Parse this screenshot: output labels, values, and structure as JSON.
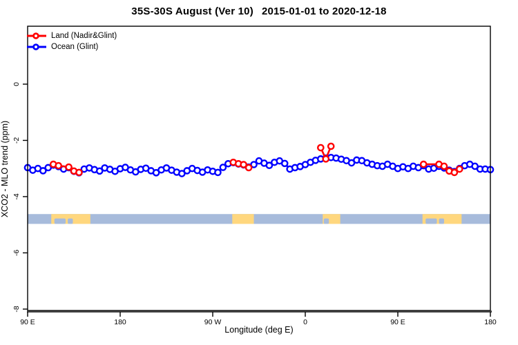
{
  "title": "35S-30S August (Ver 10)  2015-01-01 to 2020-12-18",
  "chart_data": {
    "type": "line",
    "title": "35S-30S August (Ver 10)  2015-01-01 to 2020-12-18",
    "xlabel": "Longitude (deg E)",
    "ylabel": "XCO2 - MLO trend (ppm)",
    "x_range": [
      90,
      540
    ],
    "y_range": [
      -8.05,
      2.06
    ],
    "x_ticks": [
      {
        "pos": 90,
        "label": "90 E"
      },
      {
        "pos": 180,
        "label": "180"
      },
      {
        "pos": 270,
        "label": "90 W"
      },
      {
        "pos": 360,
        "label": "0"
      },
      {
        "pos": 450,
        "label": "90 E"
      },
      {
        "pos": 540,
        "label": "180"
      }
    ],
    "y_ticks": [
      {
        "pos": 0,
        "label": "0"
      },
      {
        "pos": -2,
        "label": "-2"
      },
      {
        "pos": -4,
        "label": "-4"
      },
      {
        "pos": -6,
        "label": "-6"
      },
      {
        "pos": -8,
        "label": "-8"
      }
    ],
    "grid": false,
    "legend_position": "top-left",
    "legend": [
      {
        "label": "Land (Nadir&Glint)",
        "color": "#ff0000"
      },
      {
        "label": "Ocean (Glint)",
        "color": "#0000ff"
      }
    ],
    "series": [
      {
        "name": "Ocean (Glint)",
        "color": "#0000ff",
        "marker": "open-circle",
        "x0": 90,
        "dx": 5,
        "values": [
          -2.97,
          -3.06,
          -3.0,
          -3.08,
          -2.97,
          -2.88,
          -2.93,
          -3.02,
          -2.97,
          -3.1,
          -3.15,
          -3.02,
          -2.98,
          -3.04,
          -3.09,
          -2.98,
          -3.03,
          -3.1,
          -3.01,
          -2.96,
          -3.05,
          -3.12,
          -3.03,
          -2.99,
          -3.08,
          -3.15,
          -3.05,
          -2.98,
          -3.06,
          -3.13,
          -3.18,
          -3.08,
          -3.0,
          -3.07,
          -3.13,
          -3.05,
          -3.1,
          -3.14,
          -2.96,
          -2.83,
          -2.79,
          -2.84,
          -2.87,
          -2.95,
          -2.86,
          -2.73,
          -2.81,
          -2.89,
          -2.78,
          -2.73,
          -2.82,
          -3.02,
          -2.97,
          -2.93,
          -2.86,
          -2.78,
          -2.71,
          -2.66,
          -2.63,
          -2.61,
          -2.63,
          -2.67,
          -2.72,
          -2.8,
          -2.7,
          -2.72,
          -2.8,
          -2.85,
          -2.9,
          -2.92,
          -2.85,
          -2.92,
          -3.0,
          -2.94,
          -3.0,
          -2.92,
          -2.97,
          -2.9,
          -3.02,
          -2.99,
          -2.92,
          -2.98,
          -3.06,
          -3.11,
          -3.0,
          -2.9,
          -2.85,
          -2.92,
          -3.02,
          -3.02,
          -3.04
        ]
      },
      {
        "name": "Land (Nadir&Glint)",
        "color": "#ff0000",
        "marker": "open-circle",
        "segments": [
          [
            [
              115,
              -2.85
            ],
            [
              120,
              -2.9
            ],
            [
              130,
              -2.95
            ],
            [
              135,
              -3.09
            ],
            [
              140,
              -3.14
            ]
          ],
          [
            [
              290,
              -2.78
            ],
            [
              295,
              -2.83
            ],
            [
              300,
              -2.86
            ],
            [
              305,
              -2.97
            ]
          ],
          [
            [
              375,
              -2.26
            ],
            [
              380,
              -2.66
            ],
            [
              385,
              -2.21
            ]
          ],
          [
            [
              475,
              -2.85
            ],
            [
              490,
              -2.85
            ],
            [
              495,
              -2.92
            ],
            [
              500,
              -3.09
            ],
            [
              505,
              -3.14
            ],
            [
              510,
              -3.02
            ]
          ]
        ]
      }
    ],
    "land_ocean_strip": {
      "comment": "world map band at 35S-30S drawn across plot",
      "y_top": -4.62,
      "y_bottom": -4.97,
      "ocean_color": "#a7bbdb",
      "land_color": "#ffd77e",
      "land_patches": [
        [
          113,
          151
        ],
        [
          289,
          310
        ],
        [
          377,
          394
        ],
        [
          474,
          512
        ]
      ],
      "water_notches": [
        [
          116,
          127
        ],
        [
          129,
          134
        ],
        [
          378,
          383
        ],
        [
          477,
          488
        ],
        [
          490,
          495
        ]
      ]
    },
    "axis_colors": {
      "box": "#000000",
      "baseline": "#3c3c3c",
      "tick_label": "#000000"
    }
  }
}
